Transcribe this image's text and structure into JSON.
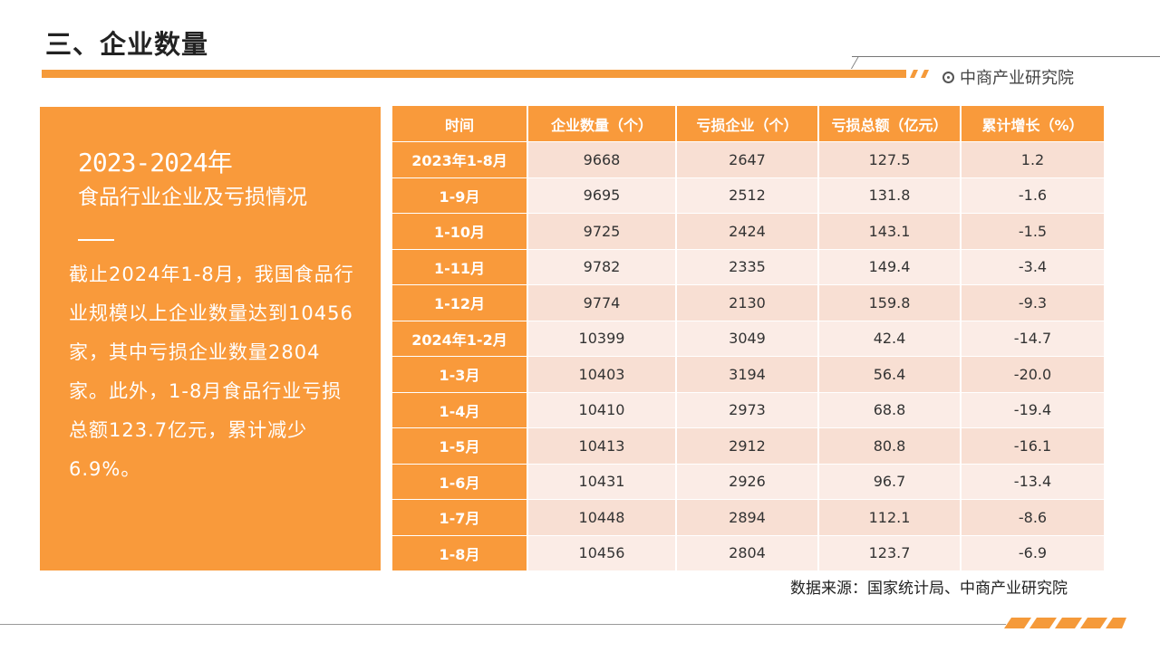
{
  "header": {
    "title": "三、企业数量",
    "brand": "中商产业研究院",
    "accent_color": "#f59a3a"
  },
  "panel": {
    "year": "2023-2024年",
    "subtitle": "食品行业企业及亏损情况",
    "description": "截止2024年1-8月，我国食品行业规模以上企业数量达到10456家，其中亏损企业数量2804家。此外，1-8月食品行业亏损总额123.7亿元，累计减少6.9%。"
  },
  "table": {
    "headers": [
      "时间",
      "企业数量（个）",
      "亏损企业（个）",
      "亏损总额（亿元）",
      "累计增长（%）"
    ],
    "rows": [
      [
        "2023年1-8月",
        "9668",
        "2647",
        "127.5",
        "1.2"
      ],
      [
        "1-9月",
        "9695",
        "2512",
        "131.8",
        "-1.6"
      ],
      [
        "1-10月",
        "9725",
        "2424",
        "143.1",
        "-1.5"
      ],
      [
        "1-11月",
        "9782",
        "2335",
        "149.4",
        "-3.4"
      ],
      [
        "1-12月",
        "9774",
        "2130",
        "159.8",
        "-9.3"
      ],
      [
        "2024年1-2月",
        "10399",
        "3049",
        "42.4",
        "-14.7"
      ],
      [
        "1-3月",
        "10403",
        "3194",
        "56.4",
        "-20.0"
      ],
      [
        "1-4月",
        "10410",
        "2973",
        "68.8",
        "-19.4"
      ],
      [
        "1-5月",
        "10413",
        "2912",
        "80.8",
        "-16.1"
      ],
      [
        "1-6月",
        "10431",
        "2926",
        "96.7",
        "-13.4"
      ],
      [
        "1-7月",
        "10448",
        "2894",
        "112.1",
        "-8.6"
      ],
      [
        "1-8月",
        "10456",
        "2804",
        "123.7",
        "-6.9"
      ]
    ]
  },
  "footer": {
    "source": "数据来源：国家统计局、中商产业研究院"
  }
}
